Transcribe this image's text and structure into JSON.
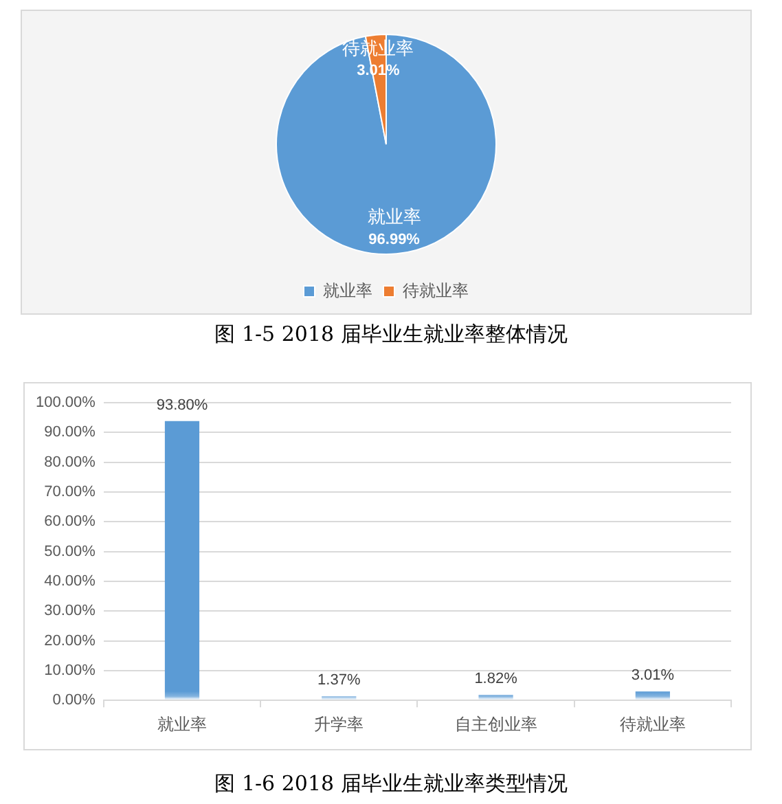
{
  "chart_data": [
    {
      "type": "pie",
      "categories": [
        "就业率",
        "待就业率"
      ],
      "values": [
        96.99,
        3.01
      ],
      "colors": [
        "#5b9bd5",
        "#ed7d31"
      ],
      "value_labels": [
        "96.99%",
        "3.01%"
      ],
      "legend": "bottom",
      "annotations": [
        "图 1-5 2018 届毕业生就业率整体情况"
      ]
    },
    {
      "type": "bar",
      "categories": [
        "就业率",
        "升学率",
        "自主创业率",
        "待就业率"
      ],
      "values": [
        93.8,
        1.37,
        1.82,
        3.01
      ],
      "color": "#5b9bd5",
      "value_labels": [
        "93.80%",
        "1.37%",
        "1.82%",
        "3.01%"
      ],
      "ylim": [
        0,
        100
      ],
      "yticks": [
        {
          "value": 0,
          "label": "0.00%"
        },
        {
          "value": 10,
          "label": "10.00%"
        },
        {
          "value": 20,
          "label": "20.00%"
        },
        {
          "value": 30,
          "label": "30.00%"
        },
        {
          "value": 40,
          "label": "40.00%"
        },
        {
          "value": 50,
          "label": "50.00%"
        },
        {
          "value": 60,
          "label": "60.00%"
        },
        {
          "value": 70,
          "label": "70.00%"
        },
        {
          "value": 80,
          "label": "80.00%"
        },
        {
          "value": 90,
          "label": "90.00%"
        },
        {
          "value": 100,
          "label": "100.00%"
        }
      ],
      "grid": "y",
      "annotations": [
        "图 1-6 2018 届毕业生就业率类型情况"
      ]
    }
  ]
}
